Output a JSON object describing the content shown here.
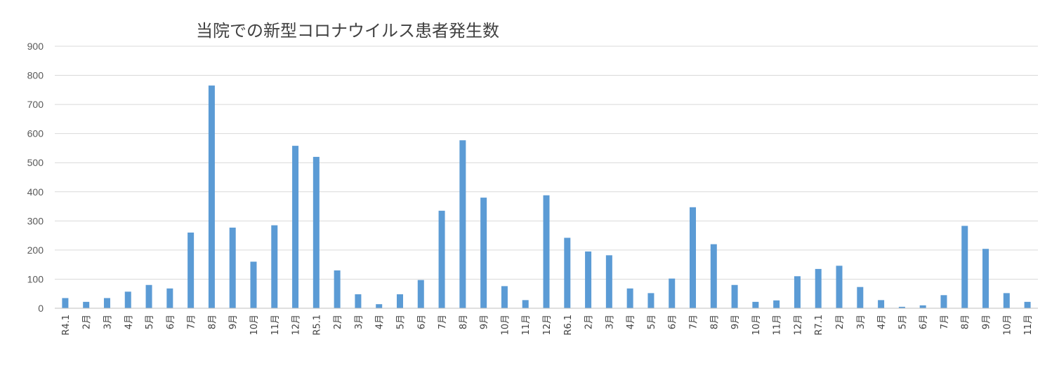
{
  "chart_data": {
    "type": "bar",
    "title": "当院での新型コロナウイルス患者発生数",
    "xlabel": "",
    "ylabel": "",
    "ylim": [
      0,
      900
    ],
    "yticks": [
      0,
      100,
      200,
      300,
      400,
      500,
      600,
      700,
      800,
      900
    ],
    "grid": true,
    "legend": "none",
    "bar_color": "#5B9BD5",
    "categories": [
      "R4.1",
      "2月",
      "3月",
      "4月",
      "5月",
      "6月",
      "7月",
      "8月",
      "9月",
      "10月",
      "11月",
      "12月",
      "R5.1",
      "2月",
      "3月",
      "4月",
      "5月",
      "6月",
      "7月",
      "8月",
      "9月",
      "10月",
      "11月",
      "12月",
      "R6.1",
      "2月",
      "3月",
      "4月",
      "5月",
      "6月",
      "7月",
      "8月",
      "9月",
      "10月",
      "11月",
      "12月",
      "R7.1",
      "2月",
      "3月",
      "4月",
      "5月",
      "6月",
      "7月",
      "8月",
      "9月",
      "10月",
      "11月"
    ],
    "values": [
      35,
      22,
      35,
      57,
      80,
      68,
      260,
      765,
      277,
      160,
      285,
      558,
      520,
      130,
      48,
      14,
      48,
      97,
      335,
      577,
      380,
      76,
      28,
      388,
      242,
      195,
      182,
      68,
      52,
      102,
      347,
      220,
      80,
      22,
      27,
      110,
      135,
      146,
      73,
      28,
      5,
      10,
      45,
      283,
      204,
      52,
      22
    ]
  }
}
